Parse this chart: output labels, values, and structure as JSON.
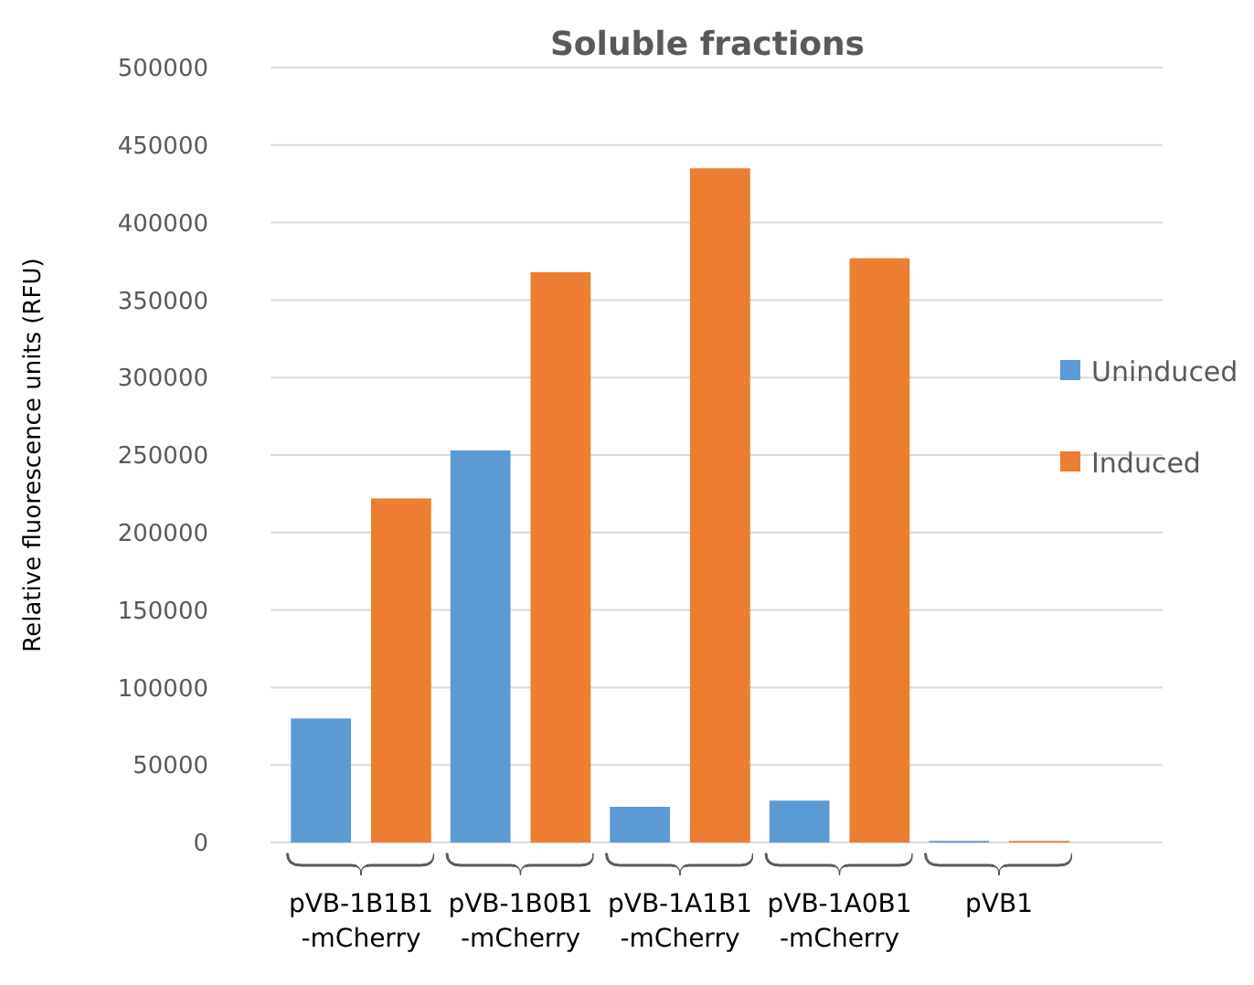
{
  "chart_data": {
    "type": "bar",
    "title": "Soluble fractions",
    "ylabel": "Relative fluorescence units (RFU)",
    "categories": [
      "pVB-1B1B1\n-mCherry",
      "pVB-1B0B1\n-mCherry",
      "pVB-1A1B1\n-mCherry",
      "pVB-1A0B1\n-mCherry",
      "pVB1"
    ],
    "series": [
      {
        "name": "Uninduced",
        "color": "#5b9bd5",
        "values": [
          80000,
          253000,
          23000,
          27000,
          1000
        ]
      },
      {
        "name": "Induced",
        "color": "#ed7d31",
        "values": [
          222000,
          368000,
          435000,
          377000,
          1000
        ]
      }
    ],
    "ylim": [
      0,
      500000
    ],
    "yticks": [
      0,
      50000,
      100000,
      150000,
      200000,
      250000,
      300000,
      350000,
      400000,
      450000,
      500000
    ],
    "grid": "y",
    "legend": "right"
  }
}
